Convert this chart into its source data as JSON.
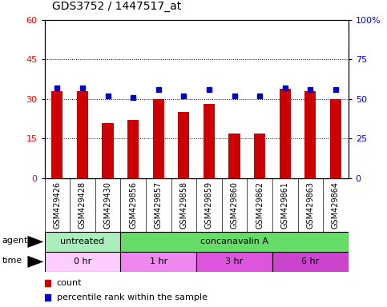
{
  "title": "GDS3752 / 1447517_at",
  "samples": [
    "GSM429426",
    "GSM429428",
    "GSM429430",
    "GSM429856",
    "GSM429857",
    "GSM429858",
    "GSM429859",
    "GSM429860",
    "GSM429862",
    "GSM429861",
    "GSM429863",
    "GSM429864"
  ],
  "counts": [
    33,
    33,
    21,
    22,
    30,
    25,
    28,
    17,
    17,
    34,
    33,
    30
  ],
  "percentile_ranks": [
    57,
    57,
    52,
    51,
    56,
    52,
    56,
    52,
    52,
    57,
    56,
    56
  ],
  "ylim_left": [
    0,
    60
  ],
  "ylim_right": [
    0,
    100
  ],
  "yticks_left": [
    0,
    15,
    30,
    45,
    60
  ],
  "yticks_right": [
    0,
    25,
    50,
    75,
    100
  ],
  "bar_color": "#cc0000",
  "dot_color": "#0000cc",
  "agent_groups": [
    {
      "label": "untreated",
      "start": 0,
      "end": 3,
      "color": "#aaeebb"
    },
    {
      "label": "concanavalin A",
      "start": 3,
      "end": 12,
      "color": "#66dd66"
    }
  ],
  "time_groups": [
    {
      "label": "0 hr",
      "start": 0,
      "end": 3,
      "color": "#ffccff"
    },
    {
      "label": "1 hr",
      "start": 3,
      "end": 6,
      "color": "#ee88ee"
    },
    {
      "label": "3 hr",
      "start": 6,
      "end": 9,
      "color": "#dd55dd"
    },
    {
      "label": "6 hr",
      "start": 9,
      "end": 12,
      "color": "#cc44cc"
    }
  ],
  "agent_label": "agent",
  "time_label": "time",
  "legend_count_label": "count",
  "legend_pct_label": "percentile rank within the sample",
  "bg_color": "#ffffff",
  "plot_bg": "#ffffff",
  "title_fontsize": 10,
  "sample_fontsize": 7,
  "label_fontsize": 8,
  "legend_fontsize": 8
}
